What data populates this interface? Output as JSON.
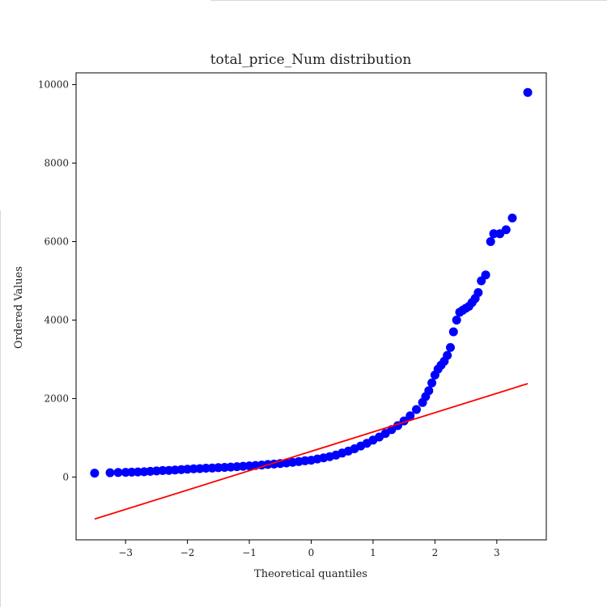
{
  "chart_data": {
    "type": "scatter",
    "title": "total_price_Num distribution",
    "xlabel": "Theoretical quantiles",
    "ylabel": "Ordered Values",
    "xlim": [
      -3.8,
      3.8
    ],
    "ylim": [
      -1600,
      10300
    ],
    "xticks": [
      -3,
      -2,
      -1,
      0,
      1,
      2,
      3
    ],
    "xtick_labels": [
      "−3",
      "−2",
      "−1",
      "0",
      "1",
      "2",
      "3"
    ],
    "yticks": [
      0,
      2000,
      4000,
      6000,
      8000,
      10000
    ],
    "ytick_labels": [
      "0",
      "2000",
      "4000",
      "6000",
      "8000",
      "10000"
    ],
    "grid": false,
    "legend": "none",
    "series": [
      {
        "kind": "points",
        "color": "#0000ff",
        "points": [
          [
            -3.5,
            100
          ],
          [
            -3.25,
            110
          ],
          [
            -3.12,
            115
          ],
          [
            -3.0,
            120
          ],
          [
            -2.9,
            125
          ],
          [
            -2.8,
            130
          ],
          [
            -2.7,
            135
          ],
          [
            -2.6,
            145
          ],
          [
            -2.5,
            155
          ],
          [
            -2.4,
            165
          ],
          [
            -2.3,
            170
          ],
          [
            -2.2,
            180
          ],
          [
            -2.1,
            190
          ],
          [
            -2.0,
            200
          ],
          [
            -1.9,
            210
          ],
          [
            -1.8,
            215
          ],
          [
            -1.7,
            225
          ],
          [
            -1.6,
            230
          ],
          [
            -1.5,
            240
          ],
          [
            -1.4,
            245
          ],
          [
            -1.3,
            255
          ],
          [
            -1.2,
            265
          ],
          [
            -1.1,
            275
          ],
          [
            -1.0,
            285
          ],
          [
            -0.9,
            295
          ],
          [
            -0.8,
            305
          ],
          [
            -0.7,
            320
          ],
          [
            -0.6,
            330
          ],
          [
            -0.5,
            345
          ],
          [
            -0.4,
            360
          ],
          [
            -0.3,
            375
          ],
          [
            -0.2,
            395
          ],
          [
            -0.1,
            415
          ],
          [
            0.0,
            430
          ],
          [
            0.1,
            460
          ],
          [
            0.2,
            490
          ],
          [
            0.3,
            520
          ],
          [
            0.4,
            560
          ],
          [
            0.5,
            610
          ],
          [
            0.6,
            660
          ],
          [
            0.7,
            720
          ],
          [
            0.8,
            790
          ],
          [
            0.9,
            860
          ],
          [
            1.0,
            940
          ],
          [
            1.1,
            1020
          ],
          [
            1.2,
            1110
          ],
          [
            1.3,
            1210
          ],
          [
            1.4,
            1310
          ],
          [
            1.5,
            1430
          ],
          [
            1.6,
            1560
          ],
          [
            1.7,
            1720
          ],
          [
            1.8,
            1900
          ],
          [
            1.85,
            2050
          ],
          [
            1.9,
            2200
          ],
          [
            1.95,
            2400
          ],
          [
            2.0,
            2600
          ],
          [
            2.05,
            2750
          ],
          [
            2.1,
            2850
          ],
          [
            2.15,
            2950
          ],
          [
            2.2,
            3100
          ],
          [
            2.25,
            3300
          ],
          [
            2.3,
            3700
          ],
          [
            2.35,
            4000
          ],
          [
            2.4,
            4200
          ],
          [
            2.45,
            4250
          ],
          [
            2.5,
            4300
          ],
          [
            2.55,
            4350
          ],
          [
            2.6,
            4450
          ],
          [
            2.65,
            4550
          ],
          [
            2.7,
            4700
          ],
          [
            2.75,
            5000
          ],
          [
            2.82,
            5150
          ],
          [
            2.9,
            6000
          ],
          [
            2.95,
            6200
          ],
          [
            3.05,
            6200
          ],
          [
            3.15,
            6300
          ],
          [
            3.25,
            6600
          ],
          [
            3.5,
            9800
          ]
        ]
      },
      {
        "kind": "fit-line",
        "color": "#ff0000",
        "points": [
          [
            -3.5,
            -1070
          ],
          [
            3.5,
            2380
          ]
        ]
      }
    ]
  }
}
